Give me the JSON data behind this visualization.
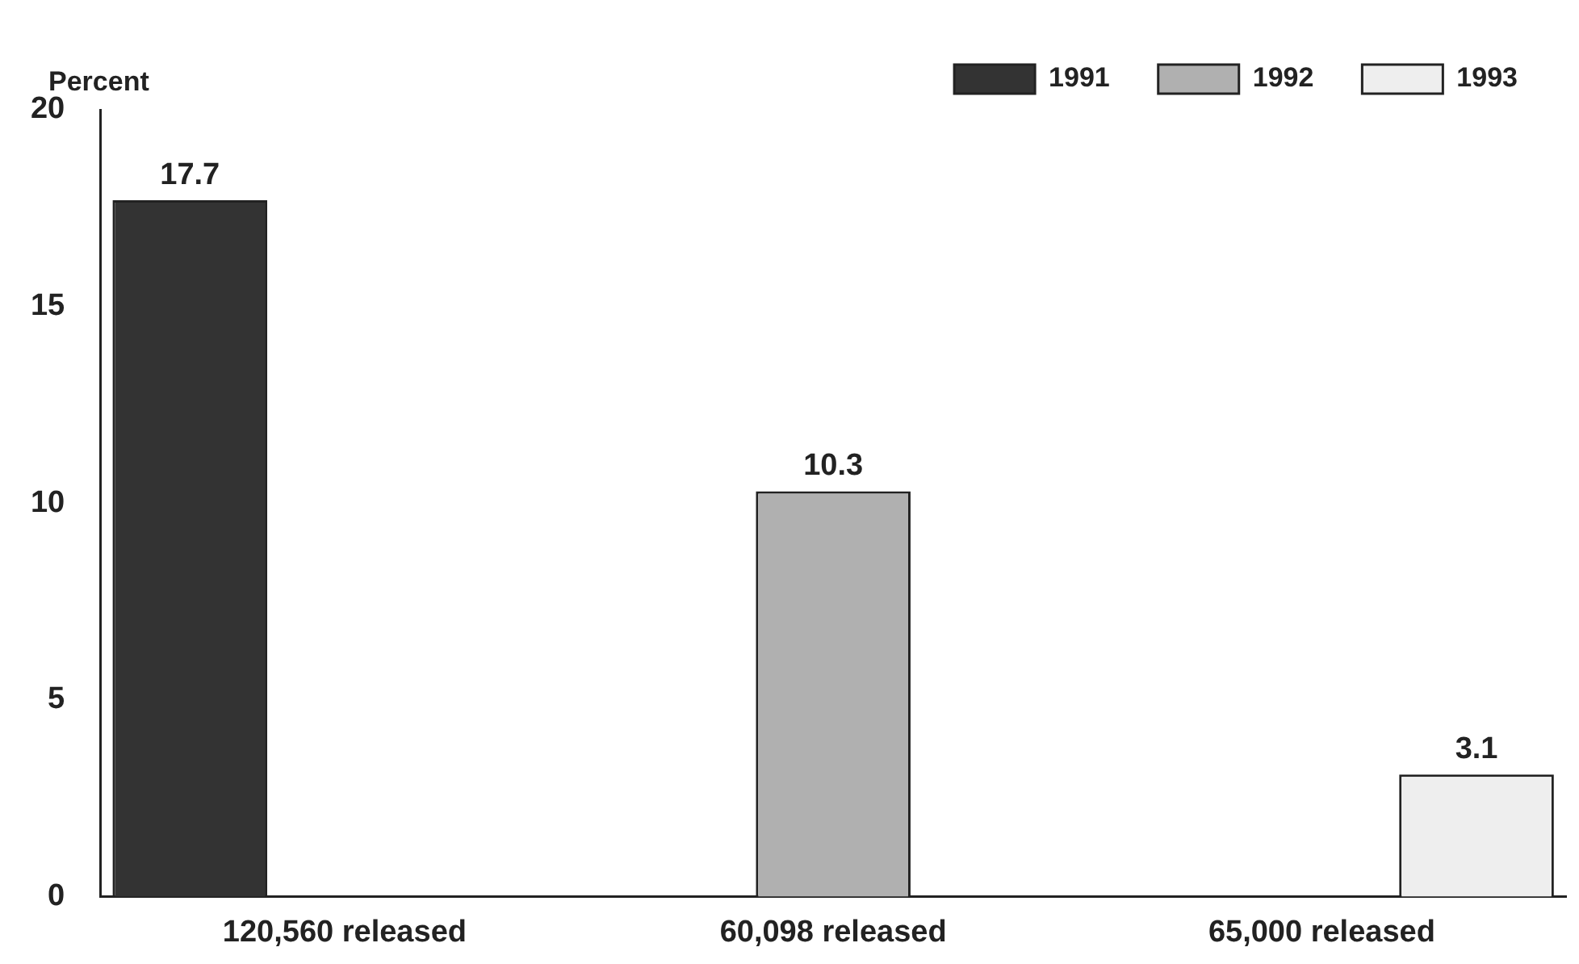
{
  "chart_data": {
    "type": "bar",
    "ylabel": "Percent",
    "categories": [
      "120,560 released",
      "60,098 released",
      "65,000 released"
    ],
    "series": [
      {
        "name": "1991",
        "color": "#333333",
        "values": [
          17.7,
          null,
          null
        ]
      },
      {
        "name": "1992",
        "color": "#b0b0b0",
        "values": [
          null,
          10.3,
          null
        ]
      },
      {
        "name": "1993",
        "color": "#eeeeee",
        "values": [
          null,
          null,
          3.1
        ]
      }
    ],
    "ylim": [
      0,
      20
    ],
    "yticks": [
      0,
      5,
      10,
      15,
      20
    ],
    "grid": false,
    "legend": "top right",
    "data_labels": true
  }
}
